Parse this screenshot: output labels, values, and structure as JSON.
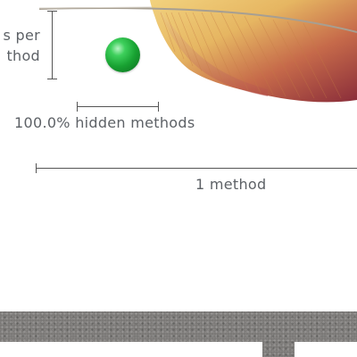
{
  "figure": {
    "per_method_label_line1": "s per",
    "per_method_label_line2": "thod",
    "hidden_methods_label": "100.0% hidden methods",
    "method_count_label": "1 method"
  },
  "bottom_band": {
    "left_card_text": "",
    "right_card_text": ""
  },
  "colors": {
    "ball": "#1fa838",
    "line": "#555555",
    "text": "#5d6166",
    "stone": "#7a7876",
    "feather_light": "#e9c06a",
    "feather_dark": "#8a2d3a"
  },
  "icons": {
    "ball": "green-sphere-icon",
    "feather": "feather-image"
  }
}
